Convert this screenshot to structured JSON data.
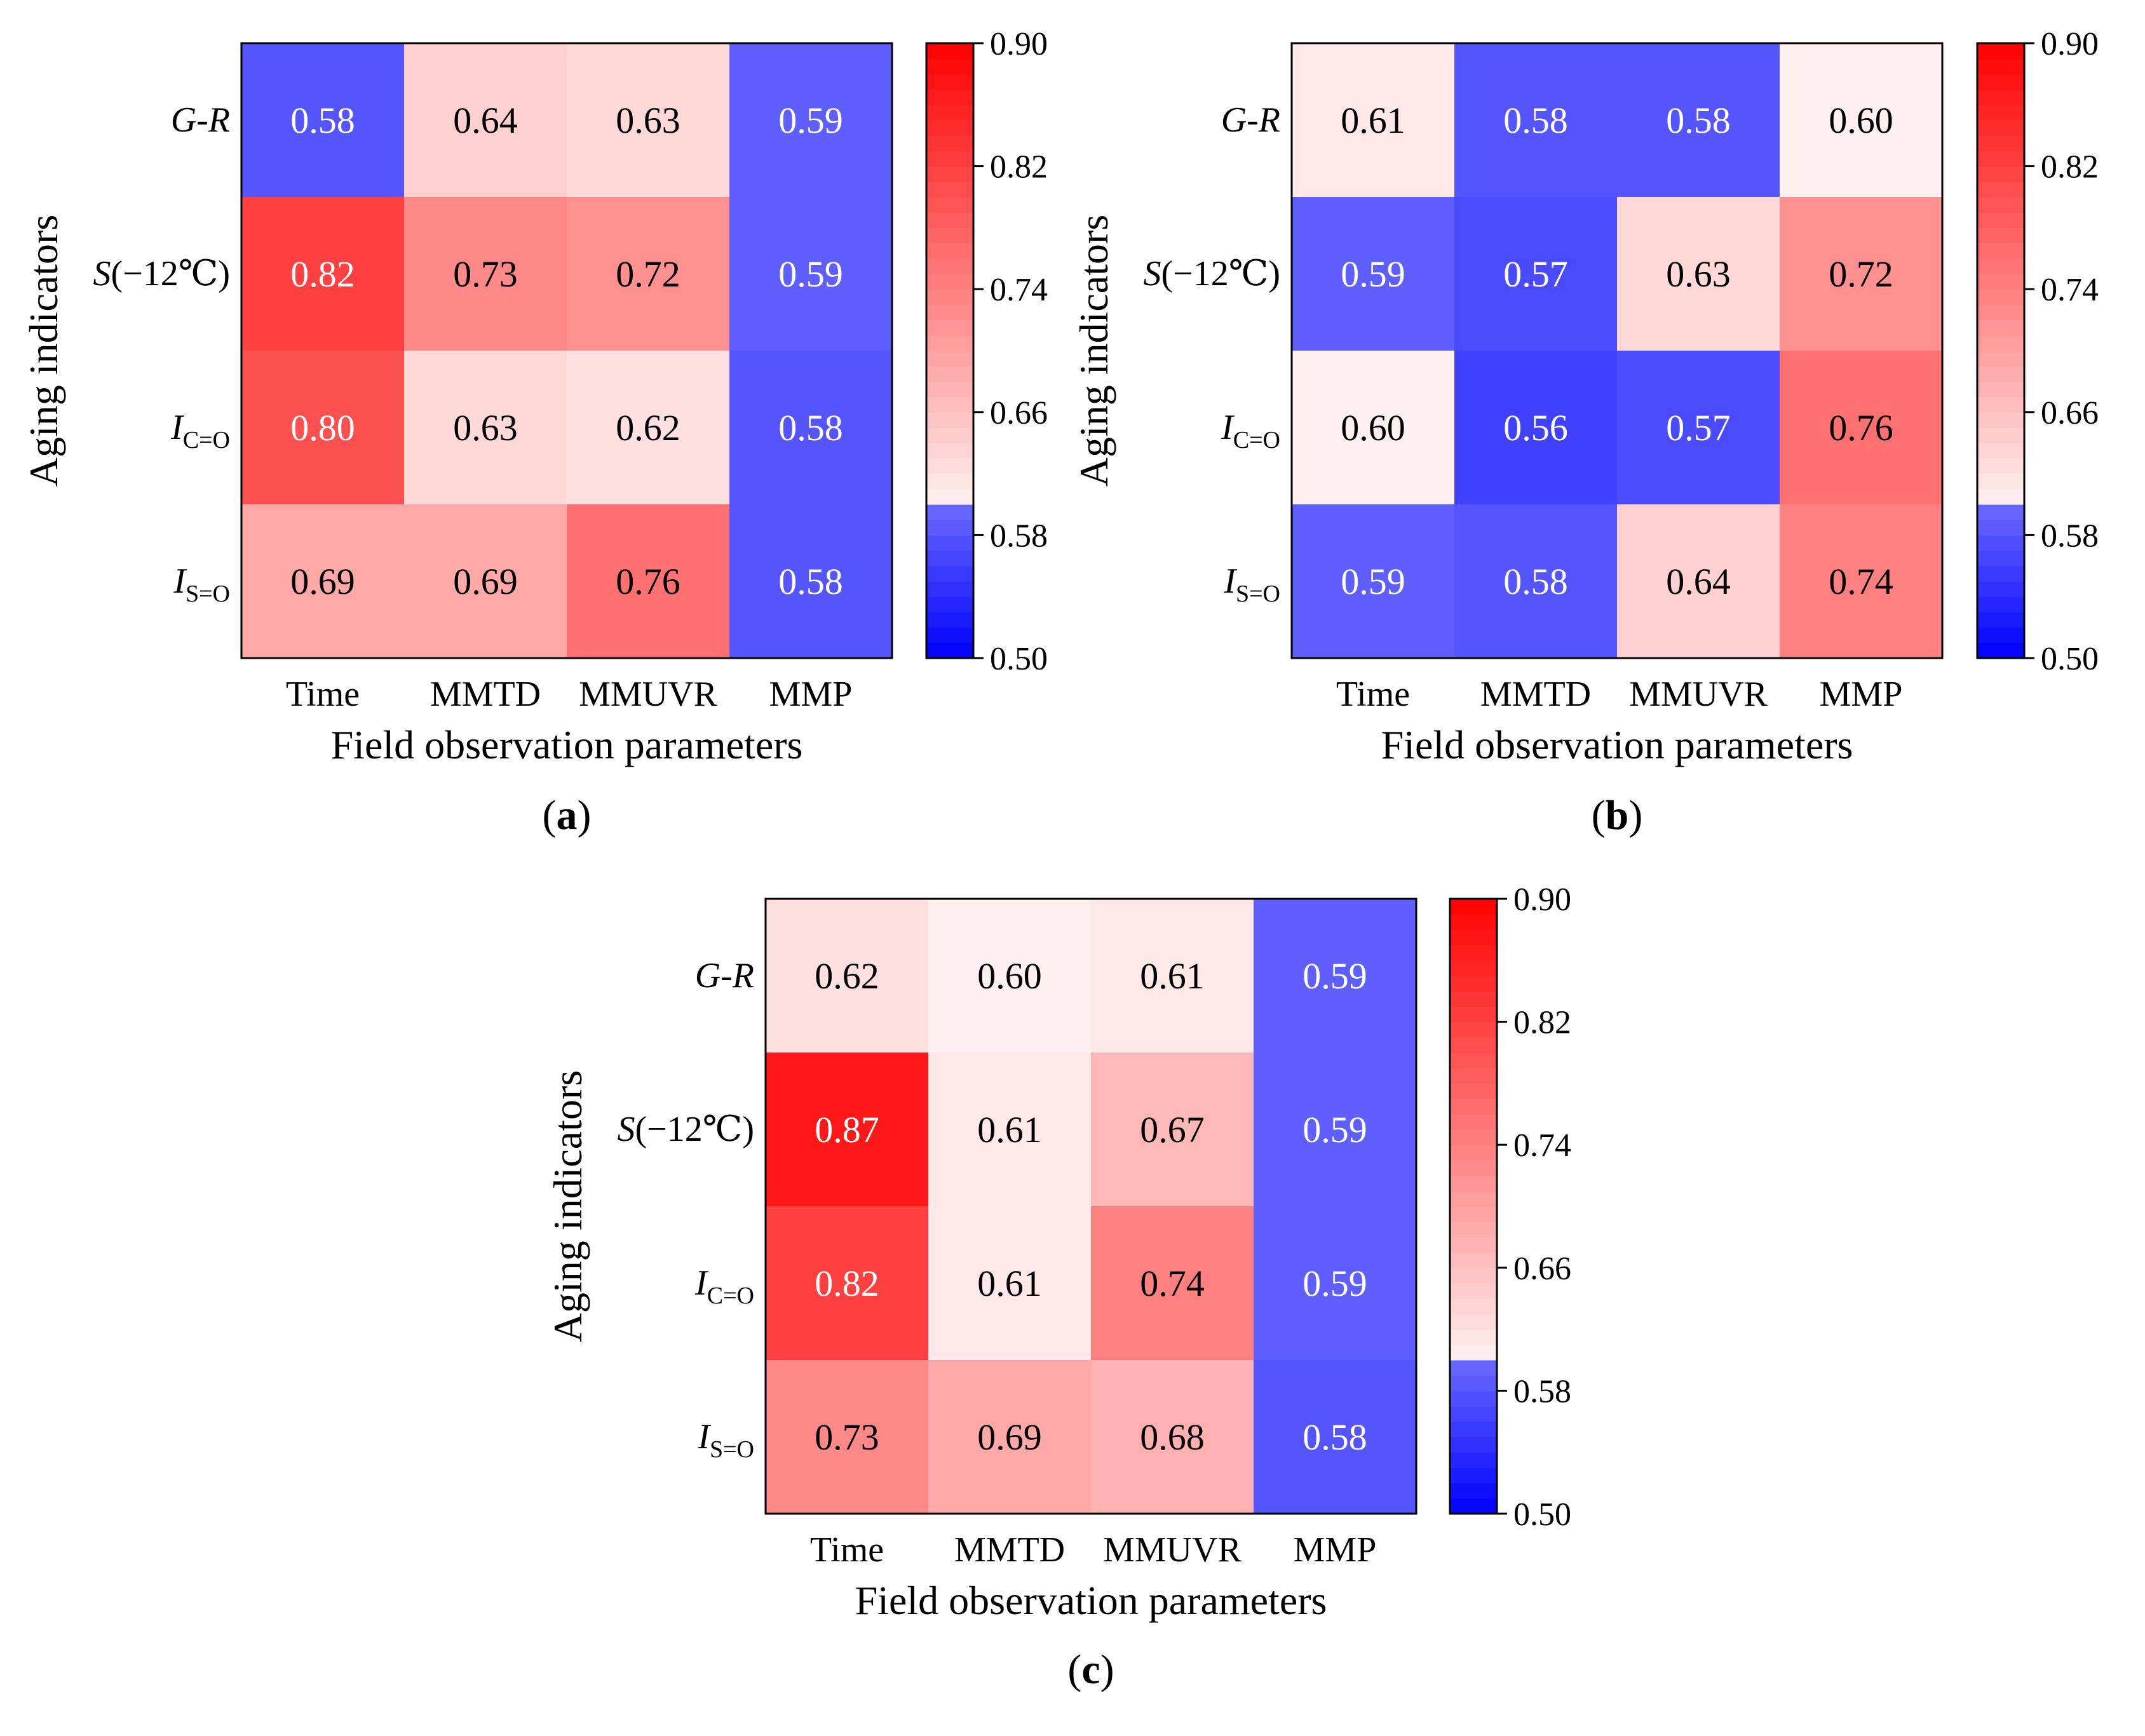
{
  "colors": {
    "red": "#ff0000",
    "blue": "#0000ff",
    "light_red": "#fff0f0",
    "light_blue": "#6a6aff",
    "frame": "#000000"
  },
  "chart_data": [
    {
      "type": "heatmap",
      "panel_label": "a",
      "xlabel": "Field observation parameters",
      "ylabel": "Aging indicators",
      "columns": [
        "Time",
        "MMTD",
        "MMUVR",
        "MMP"
      ],
      "rows": [
        {
          "main": "G-R",
          "sub": ""
        },
        {
          "main": "S",
          "sub": "",
          "suffix": "(−12℃)"
        },
        {
          "main": "I",
          "sub": "C=O"
        },
        {
          "main": "I",
          "sub": "S=O"
        }
      ],
      "values": [
        [
          0.58,
          0.64,
          0.63,
          0.59
        ],
        [
          0.82,
          0.73,
          0.72,
          0.59
        ],
        [
          0.8,
          0.63,
          0.62,
          0.58
        ],
        [
          0.69,
          0.69,
          0.76,
          0.58
        ]
      ],
      "value_labels": [
        [
          "0.58",
          "0.64",
          "0.63",
          "0.59"
        ],
        [
          "0.82",
          "0.73",
          "0.72",
          "0.59"
        ],
        [
          "0.80",
          "0.63",
          "0.62",
          "0.58"
        ],
        [
          "0.69",
          "0.69",
          "0.76",
          "0.58"
        ]
      ],
      "colorbar": {
        "min": 0.5,
        "max": 0.9,
        "split": 0.6,
        "ticks": [
          "0.90",
          "0.82",
          "0.74",
          "0.66",
          "0.58",
          "0.50"
        ]
      }
    },
    {
      "type": "heatmap",
      "panel_label": "b",
      "xlabel": "Field observation parameters",
      "ylabel": "Aging indicators",
      "columns": [
        "Time",
        "MMTD",
        "MMUVR",
        "MMP"
      ],
      "rows": [
        {
          "main": "G-R",
          "sub": ""
        },
        {
          "main": "S",
          "sub": "",
          "suffix": "(−12℃)"
        },
        {
          "main": "I",
          "sub": "C=O"
        },
        {
          "main": "I",
          "sub": "S=O"
        }
      ],
      "values": [
        [
          0.61,
          0.58,
          0.58,
          0.6
        ],
        [
          0.59,
          0.57,
          0.63,
          0.72
        ],
        [
          0.6,
          0.56,
          0.57,
          0.76
        ],
        [
          0.59,
          0.58,
          0.64,
          0.74
        ]
      ],
      "value_labels": [
        [
          "0.61",
          "0.58",
          "0.58",
          "0.60"
        ],
        [
          "0.59",
          "0.57",
          "0.63",
          "0.72"
        ],
        [
          "0.60",
          "0.56",
          "0.57",
          "0.76"
        ],
        [
          "0.59",
          "0.58",
          "0.64",
          "0.74"
        ]
      ],
      "colorbar": {
        "min": 0.5,
        "max": 0.9,
        "split": 0.6,
        "ticks": [
          "0.90",
          "0.82",
          "0.74",
          "0.66",
          "0.58",
          "0.50"
        ]
      }
    },
    {
      "type": "heatmap",
      "panel_label": "c",
      "xlabel": "Field observation parameters",
      "ylabel": "Aging indicators",
      "columns": [
        "Time",
        "MMTD",
        "MMUVR",
        "MMP"
      ],
      "rows": [
        {
          "main": "G-R",
          "sub": ""
        },
        {
          "main": "S",
          "sub": "",
          "suffix": "(−12℃)"
        },
        {
          "main": "I",
          "sub": "C=O"
        },
        {
          "main": "I",
          "sub": "S=O"
        }
      ],
      "values": [
        [
          0.62,
          0.6,
          0.61,
          0.59
        ],
        [
          0.87,
          0.61,
          0.67,
          0.59
        ],
        [
          0.82,
          0.61,
          0.74,
          0.59
        ],
        [
          0.73,
          0.69,
          0.68,
          0.58
        ]
      ],
      "value_labels": [
        [
          "0.62",
          "0.60",
          "0.61",
          "0.59"
        ],
        [
          "0.87",
          "0.61",
          "0.67",
          "0.59"
        ],
        [
          "0.82",
          "0.61",
          "0.74",
          "0.59"
        ],
        [
          "0.73",
          "0.69",
          "0.68",
          "0.58"
        ]
      ],
      "colorbar": {
        "min": 0.5,
        "max": 0.9,
        "split": 0.6,
        "ticks": [
          "0.90",
          "0.82",
          "0.74",
          "0.66",
          "0.58",
          "0.50"
        ]
      }
    }
  ]
}
